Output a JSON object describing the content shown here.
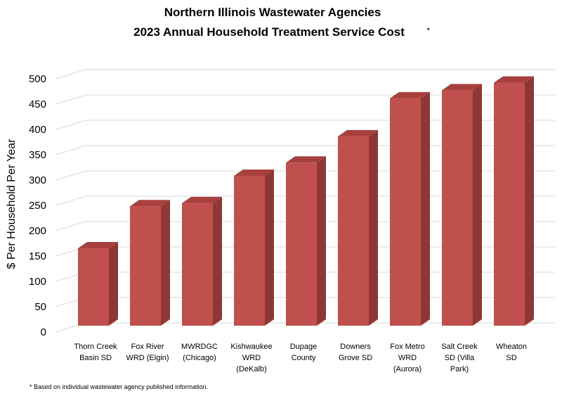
{
  "chart_data": {
    "type": "bar",
    "style": "3d-column",
    "title_line1": "Northern Illinois Wastewater Agencies",
    "title_line2": "2023 Annual Household Treatment Service Cost",
    "title_marker": "*",
    "ylabel": "$ Per Household Per Year",
    "xlabel": "",
    "ylim": [
      0,
      500
    ],
    "yticks": [
      "0",
      "50",
      "100",
      "150",
      "200",
      "250",
      "300",
      "350",
      "400",
      "450",
      "500"
    ],
    "grid": true,
    "legend": "none",
    "categories": [
      [
        "Thorn Creek",
        "Basin SD"
      ],
      [
        "Fox River",
        "WRD (Elgin)"
      ],
      [
        "MWRDGC",
        "(Chicago)"
      ],
      [
        "Kishwaukee",
        "WRD",
        "(DeKalb)"
      ],
      [
        "Dupage",
        "County"
      ],
      [
        "Downers",
        "Grove SD"
      ],
      [
        "Fox Metro",
        "WRD",
        "(Aurora)"
      ],
      [
        "Salt Creek",
        "SD (Villa",
        "Park)"
      ],
      [
        "Wheaton",
        "SD"
      ]
    ],
    "values": [
      157,
      240,
      246,
      300,
      326,
      378,
      453,
      469,
      484
    ],
    "bar_color": "#c0504d",
    "bar_side_color": "#8c3836",
    "bar_top_color": "#a8413e",
    "grid_color": "#d9d9d9"
  },
  "footnote": "* Based on individual wastewater agency published information."
}
